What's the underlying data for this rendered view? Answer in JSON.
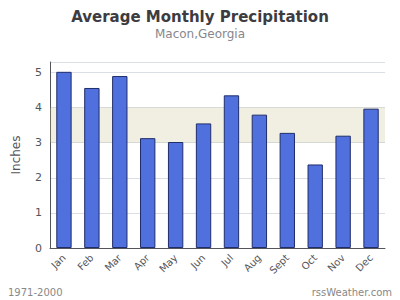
{
  "chart_data": {
    "type": "bar",
    "title": "Average Monthly Precipitation",
    "subtitle": "Macon,Georgia",
    "ylabel": "Inches",
    "categories": [
      "Jan",
      "Feb",
      "Mar",
      "Apr",
      "May",
      "Jun",
      "Jul",
      "Aug",
      "Sept",
      "Oct",
      "Nov",
      "Dec"
    ],
    "values": [
      5.02,
      4.56,
      4.9,
      3.13,
      3.02,
      3.55,
      4.35,
      3.8,
      3.28,
      2.38,
      3.2,
      3.97
    ],
    "band": [
      3.0,
      4.0
    ],
    "ylim": [
      0.0,
      5.3
    ],
    "yticks": [
      0.0,
      1.0,
      2.0,
      3.0,
      4.0,
      5.0
    ],
    "grid": true,
    "annotations": [
      "1971-2000",
      "rssWeather.com"
    ]
  }
}
